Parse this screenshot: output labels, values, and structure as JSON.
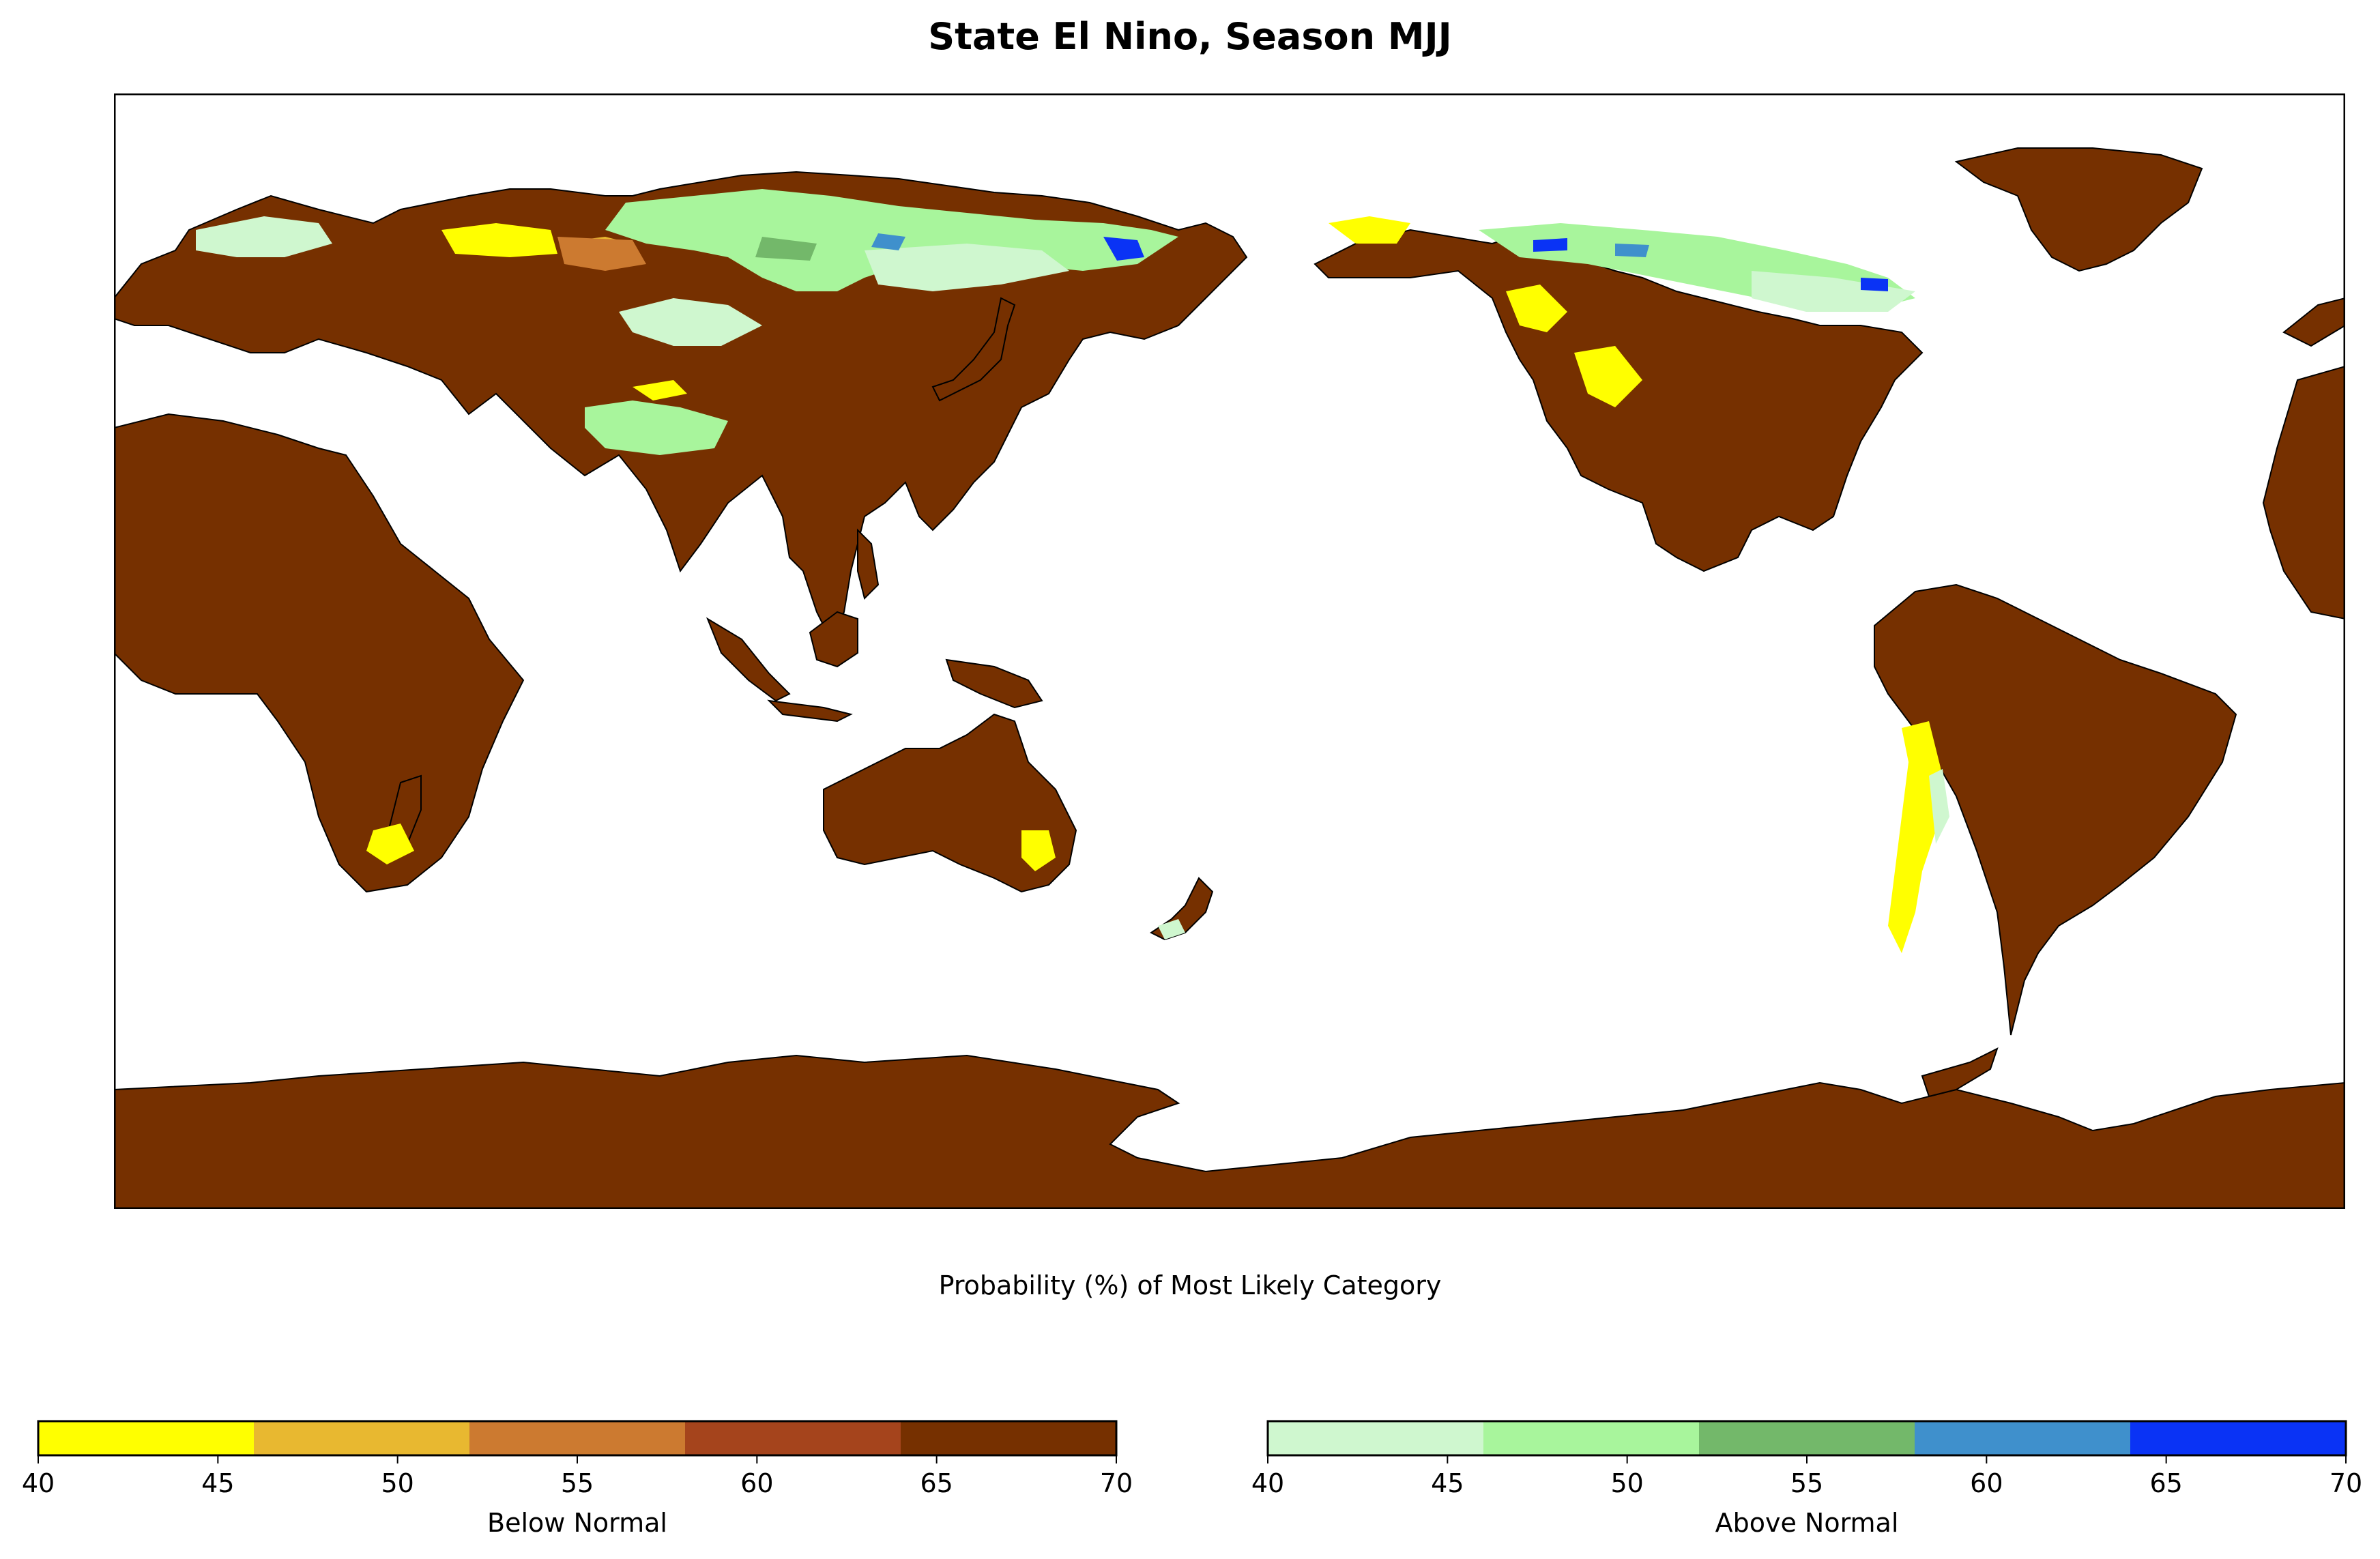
{
  "title": "State El Nino, Season MJJ",
  "subtitle": "Probability (%) of Most Likely Category",
  "colors": {
    "land_dominant": "#763000",
    "coastline": "#000000",
    "ocean": "#ffffff"
  },
  "colorbars": [
    {
      "label": "Below Normal",
      "ticks": [
        "40",
        "45",
        "50",
        "55",
        "60",
        "65",
        "70"
      ],
      "bins": [
        {
          "range": [
            40,
            46
          ],
          "color": "#ffff00"
        },
        {
          "range": [
            46,
            52
          ],
          "color": "#e8b830"
        },
        {
          "range": [
            52,
            58
          ],
          "color": "#cc7a30"
        },
        {
          "range": [
            58,
            64
          ],
          "color": "#a5441c"
        },
        {
          "range": [
            64,
            70
          ],
          "color": "#763000"
        }
      ]
    },
    {
      "label": "Above Normal",
      "ticks": [
        "40",
        "45",
        "50",
        "55",
        "60",
        "65",
        "70"
      ],
      "bins": [
        {
          "range": [
            40,
            46
          ],
          "color": "#cff7cf"
        },
        {
          "range": [
            46,
            52
          ],
          "color": "#a8f59c"
        },
        {
          "range": [
            52,
            58
          ],
          "color": "#73b86a"
        },
        {
          "range": [
            58,
            64
          ],
          "color": "#3f90cc"
        },
        {
          "range": [
            64,
            70
          ],
          "color": "#0a33f5"
        }
      ]
    }
  ]
}
